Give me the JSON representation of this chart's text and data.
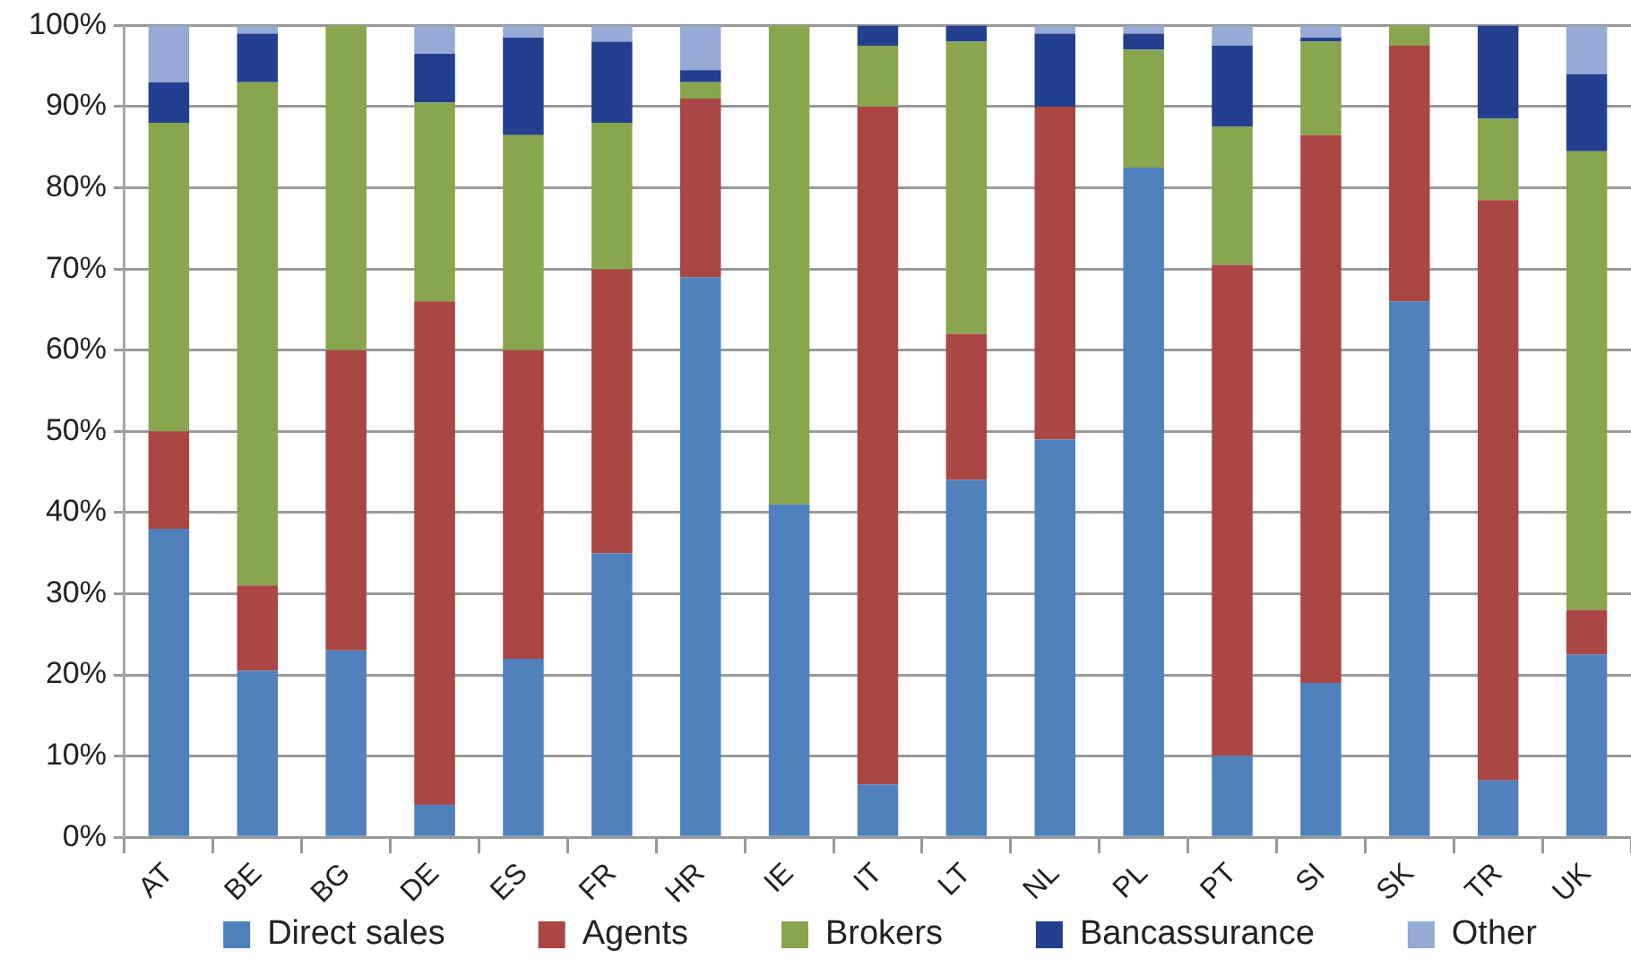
{
  "chart_data": {
    "type": "bar",
    "stacked": true,
    "categories": [
      "AT",
      "BE",
      "BG",
      "DE",
      "ES",
      "FR",
      "HR",
      "IE",
      "IT",
      "LT",
      "NL",
      "PL",
      "PT",
      "SI",
      "SK",
      "TR",
      "UK"
    ],
    "series": [
      {
        "name": "Direct sales",
        "color": "#4f81bd",
        "values": [
          38,
          20.5,
          23,
          4,
          22,
          35,
          69,
          41,
          6.5,
          44,
          49,
          82.5,
          10,
          19,
          66,
          7,
          22.5
        ]
      },
      {
        "name": "Agents",
        "color": "#aa4644",
        "values": [
          12,
          10.5,
          37,
          62,
          38,
          35,
          22,
          0,
          83.5,
          18,
          41,
          0,
          60.5,
          67.5,
          31.5,
          71.5,
          5.5
        ]
      },
      {
        "name": "Brokers",
        "color": "#89a54e",
        "values": [
          38,
          62,
          40,
          24.5,
          26.5,
          18,
          2,
          59,
          7.5,
          36,
          0,
          14.5,
          17,
          11.5,
          2.5,
          10,
          56.5
        ]
      },
      {
        "name": "Bancassurance",
        "color": "#233f8f",
        "values": [
          5,
          6,
          0,
          6,
          12,
          10,
          1.5,
          0,
          2.5,
          2,
          9,
          2,
          10,
          0.5,
          0,
          11.5,
          9.5
        ]
      },
      {
        "name": "Other",
        "color": "#95aad4",
        "values": [
          7,
          1,
          0,
          3.5,
          1.5,
          2,
          5.5,
          0,
          0,
          0,
          1,
          1,
          2.5,
          1.5,
          0,
          0,
          6
        ]
      }
    ],
    "ylim": [
      0,
      100
    ],
    "yticks": [
      {
        "value": 0,
        "label": "0%"
      },
      {
        "value": 10,
        "label": "10%"
      },
      {
        "value": 20,
        "label": "20%"
      },
      {
        "value": 30,
        "label": "30%"
      },
      {
        "value": 40,
        "label": "40%"
      },
      {
        "value": 50,
        "label": "50%"
      },
      {
        "value": 60,
        "label": "60%"
      },
      {
        "value": 70,
        "label": "70%"
      },
      {
        "value": 80,
        "label": "80%"
      },
      {
        "value": 90,
        "label": "90%"
      },
      {
        "value": 100,
        "label": "100%"
      }
    ],
    "grid": "y",
    "legend": "bottom"
  }
}
